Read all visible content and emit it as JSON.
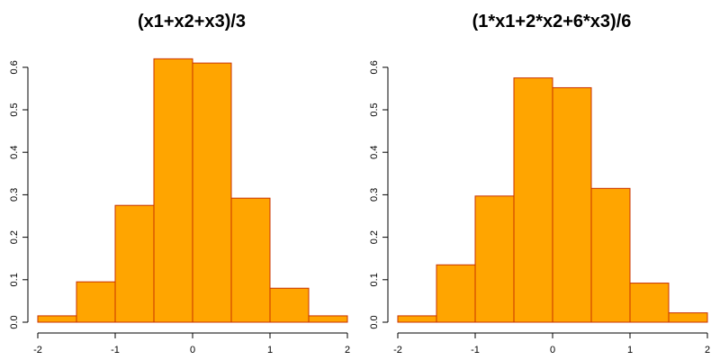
{
  "chart_data": [
    {
      "type": "bar",
      "title": "(x1+x2+x3)/3",
      "xlabel": "",
      "ylabel": "",
      "bin_edges": [
        -2,
        -1.5,
        -1,
        -0.5,
        0,
        0.5,
        1,
        1.5,
        2
      ],
      "values": [
        0.015,
        0.095,
        0.275,
        0.62,
        0.61,
        0.292,
        0.08,
        0.015
      ],
      "xlim": [
        -2,
        2
      ],
      "ylim": [
        0,
        0.65
      ],
      "x_ticks": [
        "-2",
        "-1",
        "0",
        "1",
        "2"
      ],
      "y_ticks": [
        "0.0",
        "0.1",
        "0.2",
        "0.3",
        "0.4",
        "0.5",
        "0.6"
      ],
      "grid": false,
      "bar_fill": "#FFA500",
      "bar_stroke": "#C83200"
    },
    {
      "type": "bar",
      "title": "(1*x1+2*x2+6*x3)/6",
      "xlabel": "",
      "ylabel": "",
      "bin_edges": [
        -2,
        -1.5,
        -1,
        -0.5,
        0,
        0.5,
        1,
        1.5,
        2
      ],
      "values": [
        0.015,
        0.135,
        0.297,
        0.575,
        0.552,
        0.315,
        0.092,
        0.022
      ],
      "xlim": [
        -2,
        2
      ],
      "ylim": [
        0,
        0.65
      ],
      "x_ticks": [
        "-2",
        "-1",
        "0",
        "1",
        "2"
      ],
      "y_ticks": [
        "0.0",
        "0.1",
        "0.2",
        "0.3",
        "0.4",
        "0.5",
        "0.6"
      ],
      "grid": false,
      "bar_fill": "#FFA500",
      "bar_stroke": "#C83200"
    }
  ]
}
